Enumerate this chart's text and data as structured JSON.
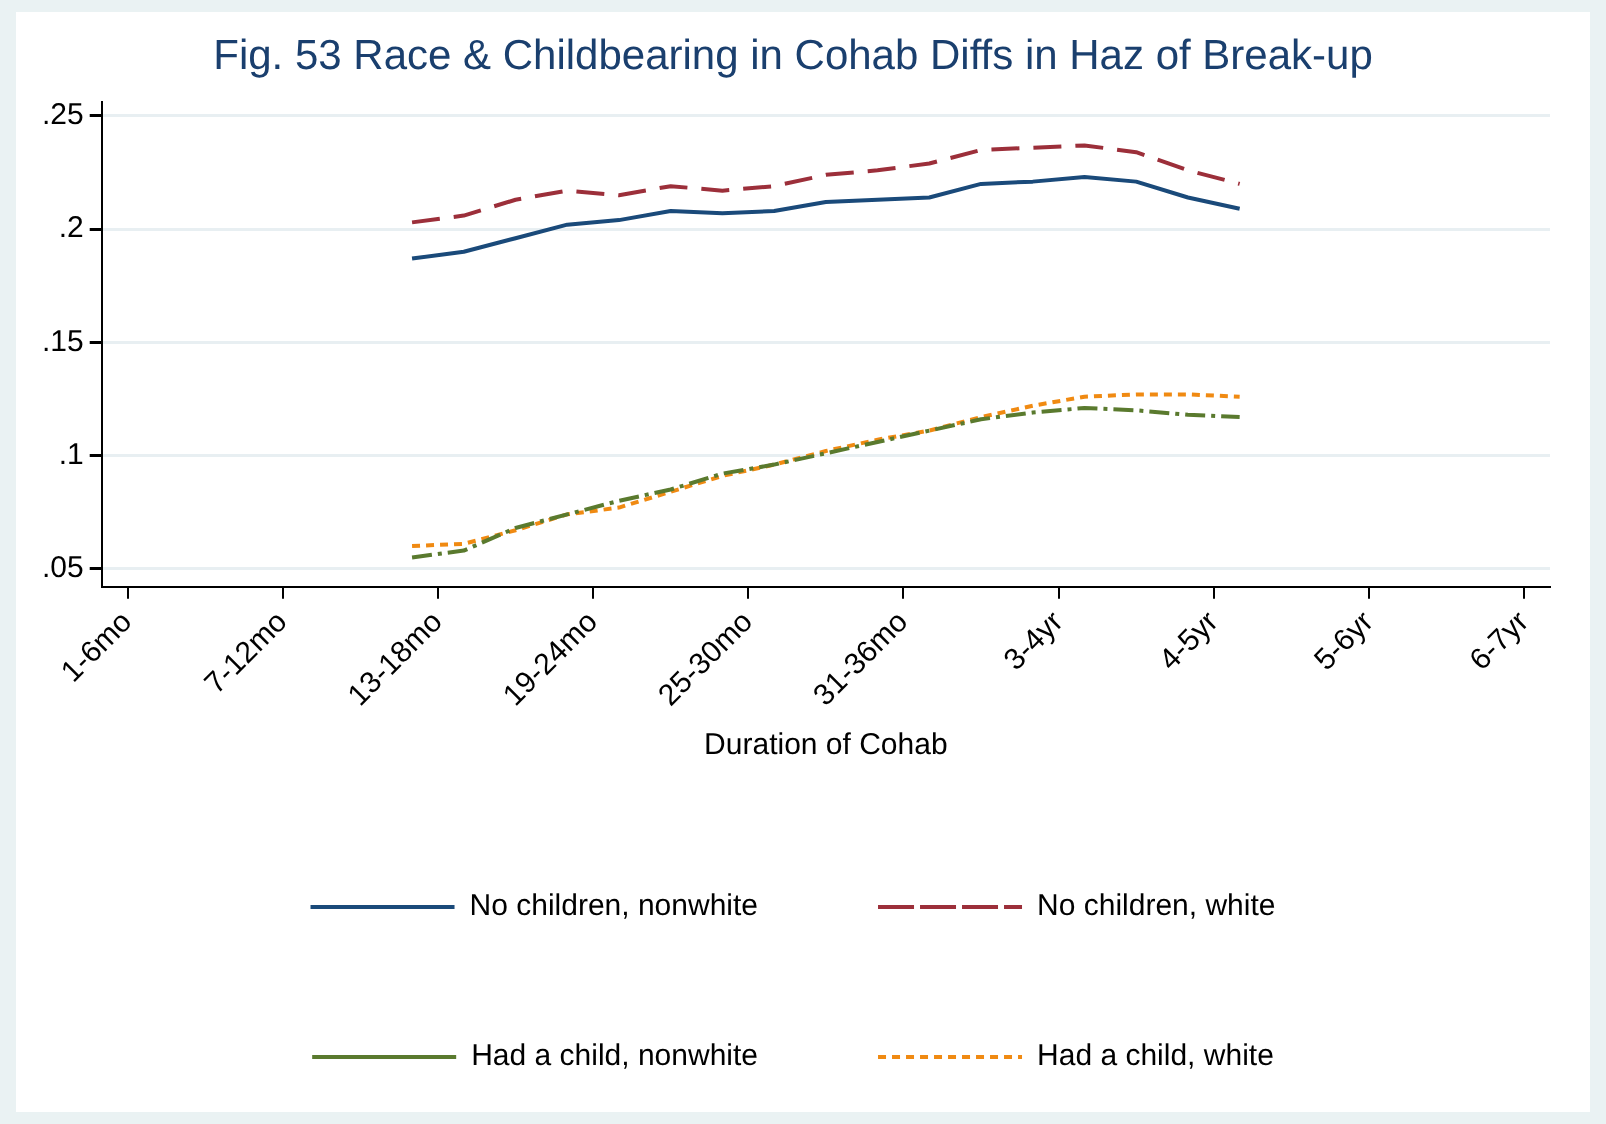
{
  "chart_data": {
    "type": "line",
    "title": "Fig. 53 Race & Childbearing in Cohab Diffs in Haz of Break-up",
    "xlabel": "Duration of Cohab",
    "categories": [
      null,
      "1-6mo",
      null,
      null,
      null,
      null,
      null,
      "7-12mo",
      null,
      null,
      null,
      null,
      null,
      "13-18mo",
      null,
      null,
      null,
      null,
      null,
      "19-24mo",
      null,
      null,
      null,
      null,
      null,
      "25-30mo",
      null,
      null,
      null,
      null,
      null,
      "31-36mo",
      null,
      null,
      null,
      null,
      null,
      "3-4yr",
      null,
      null,
      null,
      null,
      null,
      "4-5yr",
      null,
      null,
      null,
      null,
      null,
      "5-6yr",
      null,
      null,
      null,
      null,
      null,
      "6-7yr",
      null
    ],
    "ylim": [
      0.042,
      0.256
    ],
    "yticks": [
      {
        "value": 0.05,
        "label": ".05"
      },
      {
        "value": 0.1,
        "label": ".1"
      },
      {
        "value": 0.15,
        "label": ".15"
      },
      {
        "value": 0.2,
        "label": ".2"
      },
      {
        "value": 0.25,
        "label": ".25"
      }
    ],
    "grid": "y",
    "legend": "bottom",
    "marker": "none",
    "series": [
      {
        "name": "No children, nonwhite",
        "color": "#1a4a7a",
        "line_style": "solid",
        "values": [
          null,
          null,
          null,
          null,
          null,
          null,
          null,
          null,
          null,
          null,
          null,
          null,
          0.187,
          null,
          0.19,
          null,
          0.196,
          null,
          0.202,
          null,
          0.204,
          null,
          0.208,
          null,
          0.207,
          null,
          0.208,
          null,
          0.212,
          null,
          0.213,
          null,
          0.214,
          null,
          0.22,
          null,
          0.221,
          null,
          0.223,
          null,
          0.221,
          null,
          0.214,
          null,
          0.209,
          null,
          null,
          null,
          null,
          null,
          null,
          null,
          null,
          null,
          null,
          null,
          null
        ]
      },
      {
        "name": "No children, white",
        "color": "#9c2f3a",
        "line_style": "dashed",
        "values": [
          null,
          null,
          null,
          null,
          null,
          null,
          null,
          null,
          null,
          null,
          null,
          null,
          0.203,
          null,
          0.206,
          null,
          0.213,
          null,
          0.217,
          null,
          0.215,
          null,
          0.219,
          null,
          0.217,
          null,
          0.219,
          null,
          0.224,
          null,
          0.226,
          null,
          0.229,
          null,
          0.235,
          null,
          0.236,
          null,
          0.237,
          null,
          0.234,
          null,
          0.226,
          null,
          0.22,
          null,
          null,
          null,
          null,
          null,
          null,
          null,
          null,
          null,
          null,
          null,
          null
        ]
      },
      {
        "name": "Had a child, nonwhite",
        "color": "#5a7a2e",
        "line_style": "dashdot",
        "values": [
          null,
          null,
          null,
          null,
          null,
          null,
          null,
          null,
          null,
          null,
          null,
          null,
          0.055,
          null,
          0.058,
          null,
          0.068,
          null,
          0.074,
          null,
          0.08,
          null,
          0.085,
          null,
          0.092,
          null,
          0.096,
          null,
          0.101,
          null,
          0.106,
          null,
          0.111,
          null,
          0.116,
          null,
          0.119,
          null,
          0.121,
          null,
          0.12,
          null,
          0.118,
          null,
          0.117,
          null,
          null,
          null,
          null,
          null,
          null,
          null,
          null,
          null,
          null,
          null,
          null
        ]
      },
      {
        "name": "Had a child, white",
        "color": "#f08a12",
        "line_style": "dotted",
        "values": [
          null,
          null,
          null,
          null,
          null,
          null,
          null,
          null,
          null,
          null,
          null,
          null,
          0.06,
          null,
          0.061,
          null,
          0.067,
          null,
          0.074,
          null,
          0.077,
          null,
          0.084,
          null,
          0.091,
          null,
          0.096,
          null,
          0.102,
          null,
          0.107,
          null,
          0.111,
          null,
          0.117,
          null,
          0.122,
          null,
          0.126,
          null,
          0.127,
          null,
          0.127,
          null,
          0.126,
          null,
          null,
          null,
          null,
          null,
          null,
          null,
          null,
          null,
          null,
          null,
          null
        ]
      }
    ]
  }
}
